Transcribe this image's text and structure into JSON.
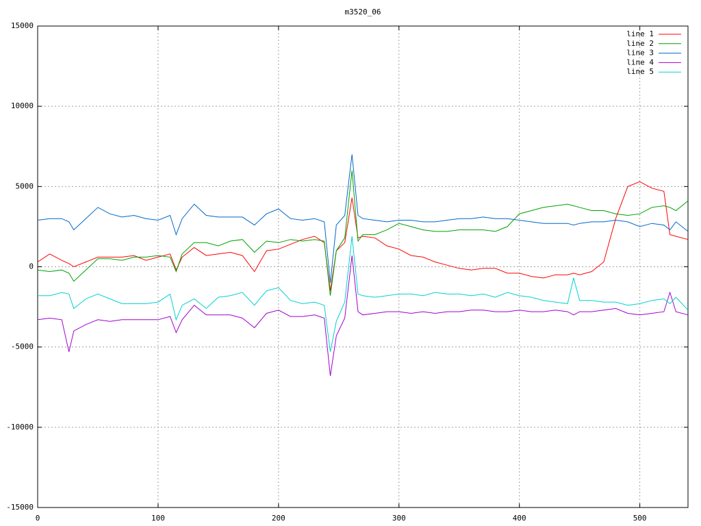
{
  "chart_data": {
    "type": "line",
    "title": "m3520_06",
    "x": [
      0,
      10,
      20,
      26,
      30,
      40,
      50,
      60,
      70,
      80,
      90,
      100,
      110,
      115,
      120,
      130,
      140,
      150,
      160,
      170,
      180,
      190,
      200,
      210,
      220,
      230,
      238,
      243,
      248,
      255,
      261,
      266,
      270,
      280,
      290,
      300,
      310,
      320,
      330,
      340,
      350,
      360,
      370,
      380,
      390,
      400,
      410,
      420,
      430,
      440,
      445,
      450,
      460,
      470,
      480,
      490,
      500,
      510,
      520,
      525,
      530,
      540
    ],
    "series": [
      {
        "name": "line 1",
        "color": "#ff0000",
        "values": [
          300,
          800,
          400,
          200,
          0,
          300,
          600,
          600,
          600,
          700,
          400,
          600,
          800,
          -200,
          600,
          1200,
          700,
          800,
          900,
          700,
          -300,
          1000,
          1100,
          1400,
          1700,
          1900,
          1500,
          -1500,
          1000,
          1500,
          4300,
          1800,
          1900,
          1800,
          1300,
          1100,
          700,
          600,
          300,
          100,
          -100,
          -200,
          -100,
          -100,
          -400,
          -400,
          -600,
          -700,
          -500,
          -500,
          -400,
          -500,
          -300,
          300,
          3000,
          5000,
          5300,
          4900,
          4700,
          2000,
          1900,
          1700
        ]
      },
      {
        "name": "line 2",
        "color": "#00a000",
        "values": [
          -200,
          -300,
          -200,
          -400,
          -900,
          -200,
          500,
          500,
          400,
          600,
          600,
          700,
          600,
          -300,
          800,
          1500,
          1500,
          1300,
          1600,
          1700,
          900,
          1600,
          1500,
          1700,
          1600,
          1700,
          1600,
          -1800,
          1000,
          1800,
          6000,
          1600,
          2000,
          2000,
          2300,
          2700,
          2500,
          2300,
          2200,
          2200,
          2300,
          2300,
          2300,
          2200,
          2500,
          3300,
          3500,
          3700,
          3800,
          3900,
          3800,
          3700,
          3500,
          3500,
          3300,
          3200,
          3300,
          3700,
          3800,
          3700,
          3500,
          4100
        ]
      },
      {
        "name": "line 3",
        "color": "#0066cc",
        "values": [
          2900,
          3000,
          3000,
          2800,
          2300,
          3000,
          3700,
          3300,
          3100,
          3200,
          3000,
          2900,
          3200,
          2000,
          3000,
          3900,
          3200,
          3100,
          3100,
          3100,
          2600,
          3300,
          3600,
          3000,
          2900,
          3000,
          2800,
          -1000,
          2600,
          3200,
          7000,
          3200,
          3000,
          2900,
          2800,
          2900,
          2900,
          2800,
          2800,
          2900,
          3000,
          3000,
          3100,
          3000,
          3000,
          2900,
          2800,
          2700,
          2700,
          2700,
          2600,
          2700,
          2800,
          2800,
          2900,
          2800,
          2500,
          2700,
          2600,
          2300,
          2800,
          2200
        ]
      },
      {
        "name": "line 4",
        "color": "#a000d0",
        "values": [
          -3300,
          -3200,
          -3300,
          -5300,
          -4000,
          -3600,
          -3300,
          -3400,
          -3300,
          -3300,
          -3300,
          -3300,
          -3100,
          -4100,
          -3300,
          -2400,
          -3000,
          -3000,
          -3000,
          -3200,
          -3800,
          -2900,
          -2700,
          -3100,
          -3100,
          -3000,
          -3200,
          -6800,
          -4300,
          -3200,
          700,
          -2800,
          -3000,
          -2900,
          -2800,
          -2800,
          -2900,
          -2800,
          -2900,
          -2800,
          -2800,
          -2700,
          -2700,
          -2800,
          -2800,
          -2700,
          -2800,
          -2800,
          -2700,
          -2800,
          -3000,
          -2800,
          -2800,
          -2700,
          -2600,
          -2900,
          -3000,
          -2900,
          -2800,
          -1600,
          -2800,
          -3000
        ]
      },
      {
        "name": "line 5",
        "color": "#00d0d0",
        "values": [
          -1800,
          -1800,
          -1600,
          -1700,
          -2600,
          -2000,
          -1700,
          -2000,
          -2300,
          -2300,
          -2300,
          -2200,
          -1700,
          -3300,
          -2400,
          -2000,
          -2600,
          -1900,
          -1800,
          -1600,
          -2400,
          -1500,
          -1300,
          -2100,
          -2300,
          -2200,
          -2400,
          -5300,
          -3400,
          -2200,
          1900,
          -1700,
          -1800,
          -1900,
          -1800,
          -1700,
          -1700,
          -1800,
          -1600,
          -1700,
          -1700,
          -1800,
          -1700,
          -1900,
          -1600,
          -1800,
          -1900,
          -2100,
          -2200,
          -2300,
          -700,
          -2100,
          -2100,
          -2200,
          -2200,
          -2400,
          -2300,
          -2100,
          -2000,
          -2300,
          -1900,
          -2700
        ]
      }
    ],
    "xlim": [
      0,
      540
    ],
    "xticks": [
      0,
      100,
      200,
      300,
      400,
      500
    ],
    "ylim": [
      -15000,
      15000
    ],
    "yticks": [
      -15000,
      -10000,
      -5000,
      0,
      5000,
      10000,
      15000
    ],
    "grid": true,
    "legend": "top-right"
  }
}
